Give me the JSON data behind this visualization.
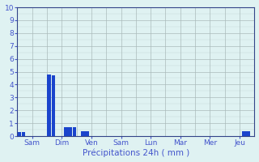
{
  "title": "",
  "xlabel": "Précipitations 24h ( mm )",
  "ylabel": "",
  "ylim": [
    0,
    10
  ],
  "yticks": [
    0,
    1,
    2,
    3,
    4,
    5,
    6,
    7,
    8,
    9,
    10
  ],
  "day_labels": [
    "Sam",
    "Dim",
    "Ven",
    "Sam",
    "Lun",
    "Mar",
    "Mer",
    "Jeu"
  ],
  "n_bars": 56,
  "bar_values": [
    0.3,
    0.3,
    0,
    0,
    0,
    0,
    0,
    4.8,
    4.7,
    0,
    0,
    0.7,
    0.7,
    0.7,
    0,
    0.4,
    0.4,
    0,
    0,
    0,
    0,
    0,
    0,
    0,
    0,
    0,
    0,
    0,
    0,
    0,
    0,
    0,
    0,
    0,
    0,
    0,
    0,
    0,
    0,
    0,
    0,
    0,
    0,
    0,
    0,
    0,
    0,
    0,
    0,
    0,
    0,
    0,
    0,
    0.4,
    0.4,
    0
  ],
  "bar_color": "#1a44cc",
  "bg_color": "#dff2f2",
  "grid_color": "#aabbbb",
  "tick_color": "#4455cc",
  "label_color": "#4455cc",
  "axis_color": "#334488",
  "tick_fontsize": 6.5,
  "xlabel_fontsize": 7.5
}
